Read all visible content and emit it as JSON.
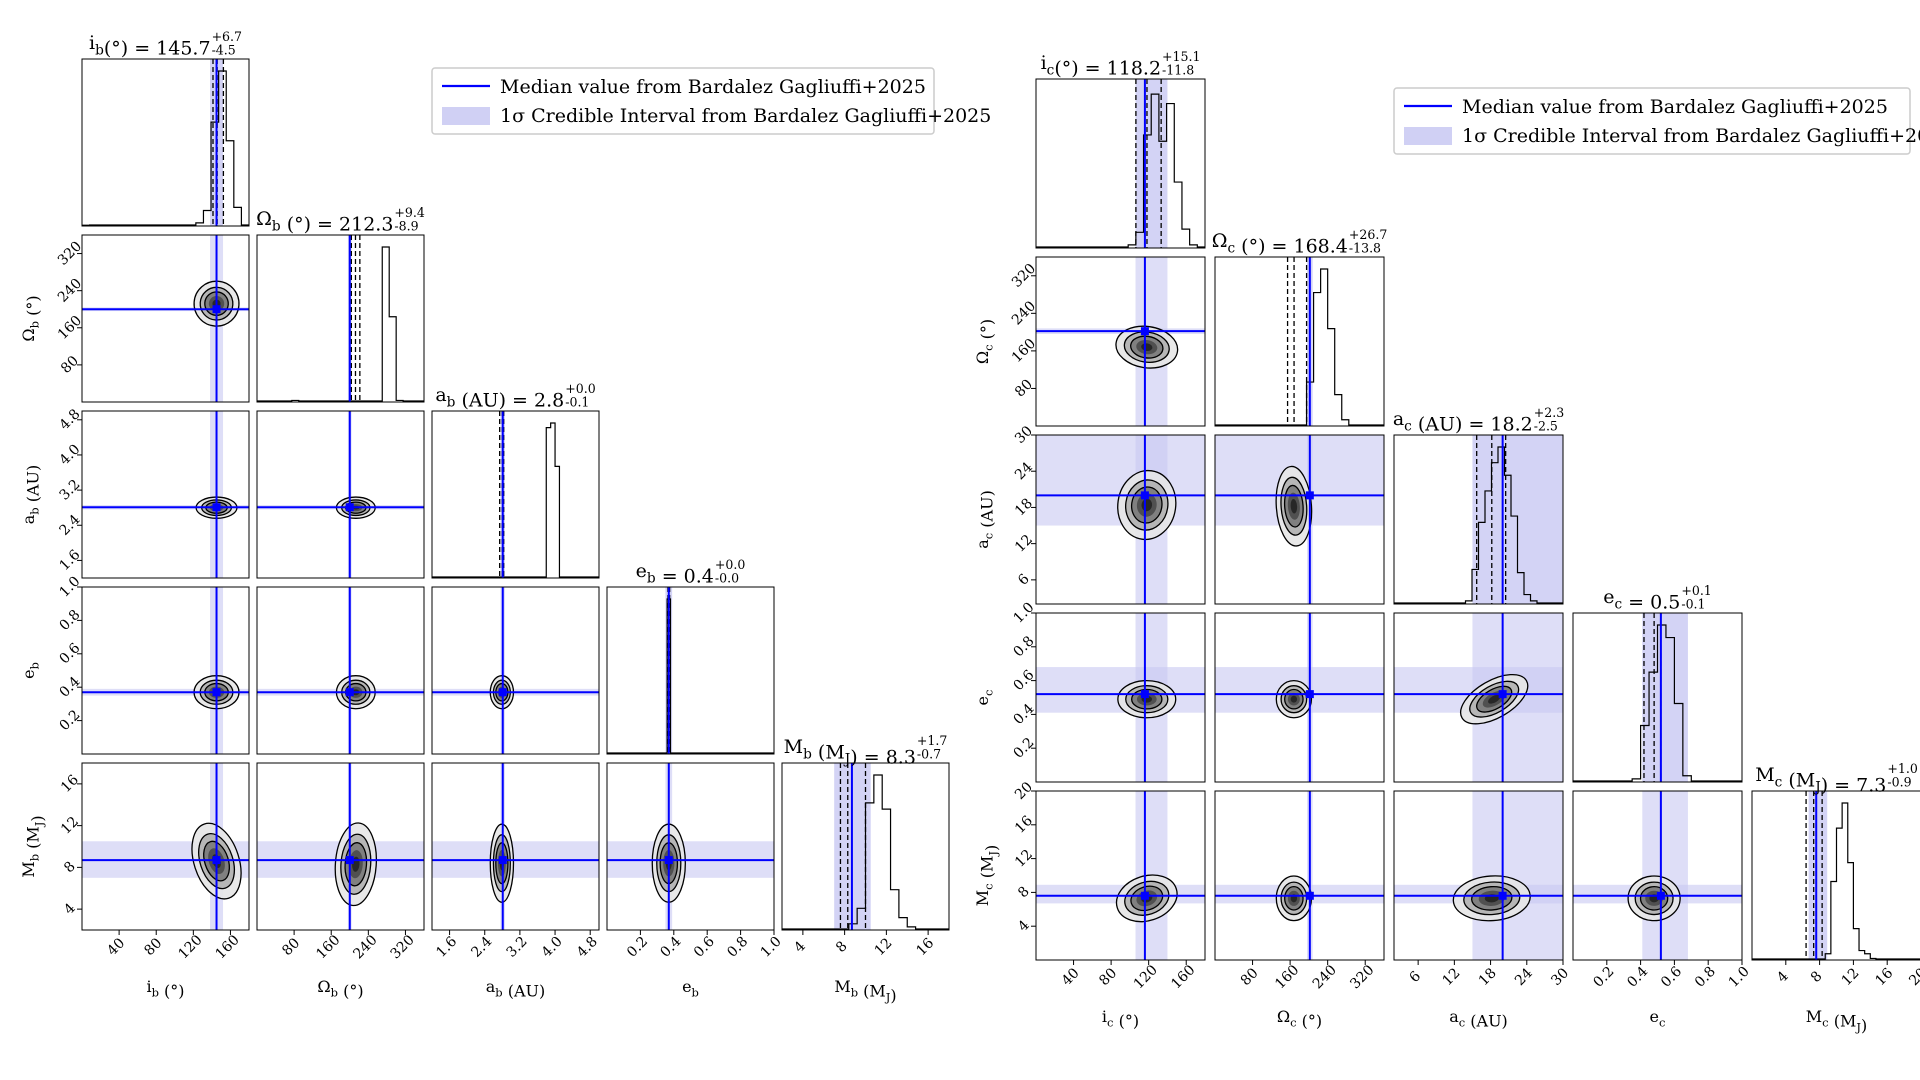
{
  "colors": {
    "median": "#0000ff",
    "band": "#c8c8f2",
    "hist": "#000000",
    "frame": "#000000",
    "legend_border": "#cccccc"
  },
  "legend": {
    "median_label": "Median value from Bardalez Gagliuffi+2025",
    "interval_label": "1σ Credible Interval from Bardalez Gagliuffi+2025"
  },
  "chart_data": [
    {
      "type": "corner",
      "name": "planet-b",
      "params": [
        {
          "key": "i",
          "axis_label": "i_b (°)",
          "title": "i_b(°) = 145.7^{+6.7}_{-4.5}",
          "range": [
            0,
            180
          ],
          "ticks": [
            40,
            80,
            120,
            160
          ],
          "tick_labels": [
            "40",
            "80",
            "120",
            "160"
          ],
          "hist": [
            0.005,
            0,
            0,
            0,
            0,
            0,
            0,
            0,
            0,
            0,
            0,
            0,
            0,
            0,
            0,
            0.02,
            0.1,
            0.67,
            1.0,
            0.55,
            0.12,
            0
          ],
          "quantiles": [
            141.2,
            145.7,
            152.4
          ],
          "ref_median": 145,
          "ref_interval": [
            138,
            152
          ]
        },
        {
          "key": "Omega",
          "axis_label": "Ω_b (°)",
          "title": "Ω_b (°) = 212.3^{+9.4}_{-8.9}",
          "range": [
            0,
            360
          ],
          "ticks": [
            80,
            160,
            240,
            320
          ],
          "tick_labels": [
            "80",
            "160",
            "240",
            "320"
          ],
          "hist": [
            0,
            0,
            0,
            0,
            0,
            0.01,
            0,
            0,
            0,
            0,
            0,
            0,
            0,
            0,
            0,
            0,
            0,
            0,
            1.0,
            0.55,
            0.01,
            0,
            0,
            0
          ],
          "quantiles": [
            203.4,
            212.3,
            221.7
          ],
          "ref_median": 200,
          "ref_interval": [
            196,
            204
          ]
        },
        {
          "key": "a",
          "axis_label": "a_b (AU)",
          "title": "a_b (AU) = 2.8^{+0.0}_{-0.1}",
          "range": [
            1.2,
            5.0
          ],
          "ticks": [
            1.6,
            2.4,
            3.2,
            4.0,
            4.8
          ],
          "tick_labels": [
            "1.6",
            "2.4",
            "3.2",
            "4.0",
            "4.8"
          ],
          "hist": [
            0,
            0,
            0,
            0,
            0,
            0,
            0,
            0,
            0,
            0,
            0,
            0,
            0,
            0,
            0,
            0,
            0,
            0,
            0,
            0,
            0,
            0,
            0,
            0,
            0,
            0,
            0.97,
            1.0,
            0.72,
            0,
            0,
            0,
            0,
            0,
            0,
            0,
            0,
            0
          ],
          "quantiles": [
            2.74,
            2.8,
            2.83
          ],
          "ref_median": 2.81,
          "ref_interval": [
            2.76,
            2.86
          ]
        },
        {
          "key": "e",
          "axis_label": "e_b",
          "title": "e_b = 0.4^{+0.0}_{-0.0}",
          "range": [
            0,
            1
          ],
          "ticks": [
            0.2,
            0.4,
            0.6,
            0.8,
            1.0
          ],
          "tick_labels": [
            "0.2",
            "0.4",
            "0.6",
            "0.8",
            "1.0"
          ],
          "hist": [
            0,
            0,
            0,
            0,
            0,
            0,
            0,
            0,
            0,
            0,
            0,
            0,
            0,
            0,
            0,
            0,
            0,
            0,
            0,
            0,
            0,
            0,
            0,
            0,
            0,
            0,
            0,
            0,
            0,
            0,
            0,
            0,
            0,
            0,
            0,
            0,
            0,
            0,
            0,
            0,
            0,
            0,
            0,
            0,
            0,
            0,
            0,
            0,
            0,
            0,
            0,
            0,
            0,
            0,
            0,
            0,
            0,
            0,
            0,
            0,
            0,
            0,
            0,
            0,
            0,
            0,
            0,
            0,
            0,
            0,
            0,
            0,
            0,
            0,
            0,
            0,
            0,
            0,
            0,
            0,
            0,
            0,
            0,
            0,
            0,
            0,
            0,
            0,
            0,
            0,
            0,
            0,
            0,
            0,
            0,
            0,
            0,
            0,
            0,
            0
          ],
          "hist_bins_note": "",
          "quantiles": [
            0.365,
            0.37,
            0.375
          ],
          "ref_median": 0.37,
          "ref_interval": [
            0.35,
            0.39
          ],
          "spike": [
            0.36,
            0.38
          ]
        },
        {
          "key": "M",
          "axis_label": "M_b (M_J)",
          "title": "M_b (M_J) = 8.3^{+1.7}_{-0.7}",
          "range": [
            2,
            18
          ],
          "ticks": [
            4,
            8,
            12,
            16
          ],
          "tick_labels": [
            "4",
            "8",
            "12",
            "16"
          ],
          "hist": [
            0,
            0,
            0,
            0,
            0,
            0,
            0,
            0,
            0.04,
            0.14,
            0.82,
            1.0,
            0.78,
            0.26,
            0.08,
            0.02,
            0,
            0,
            0,
            0
          ],
          "quantiles": [
            7.6,
            8.3,
            10.0
          ],
          "ref_median": 8.7,
          "ref_interval": [
            7.0,
            10.5
          ]
        }
      ],
      "contours": [
        {
          "row": 1,
          "col": 0,
          "center": [
            145,
            212
          ],
          "sx": 11,
          "sy": 22,
          "corr": -0.1
        },
        {
          "row": 2,
          "col": 0,
          "center": [
            145,
            2.8
          ],
          "sx": 10,
          "sy": 0.11,
          "corr": 0
        },
        {
          "row": 2,
          "col": 1,
          "center": [
            213,
            2.8
          ],
          "sx": 19,
          "sy": 0.11,
          "corr": 0
        },
        {
          "row": 3,
          "col": 0,
          "center": [
            145,
            0.37
          ],
          "sx": 11,
          "sy": 0.045,
          "corr": 0
        },
        {
          "row": 3,
          "col": 1,
          "center": [
            213,
            0.37
          ],
          "sx": 19,
          "sy": 0.045,
          "corr": 0
        },
        {
          "row": 3,
          "col": 2,
          "center": [
            2.79,
            0.37
          ],
          "sx": 0.12,
          "sy": 0.045,
          "corr": 0
        },
        {
          "row": 4,
          "col": 0,
          "center": [
            145,
            8.6
          ],
          "sx": 11,
          "sy": 1.7,
          "corr": 0.45
        },
        {
          "row": 4,
          "col": 1,
          "center": [
            213,
            8.3
          ],
          "sx": 20,
          "sy": 1.8,
          "corr": -0.1
        },
        {
          "row": 4,
          "col": 2,
          "center": [
            2.79,
            8.4
          ],
          "sx": 0.12,
          "sy": 1.7,
          "corr": 0
        },
        {
          "row": 4,
          "col": 3,
          "center": [
            0.37,
            8.4
          ],
          "sx": 0.045,
          "sy": 1.7,
          "corr": 0
        }
      ]
    },
    {
      "type": "corner",
      "name": "planet-c",
      "params": [
        {
          "key": "i",
          "axis_label": "i_c (°)",
          "title": "i_c(°) = 118.2^{+15.1}_{-11.8}",
          "range": [
            0,
            180
          ],
          "ticks": [
            40,
            80,
            120,
            160
          ],
          "tick_labels": [
            "40",
            "80",
            "120",
            "160"
          ],
          "hist": [
            0,
            0,
            0,
            0,
            0,
            0,
            0,
            0,
            0,
            0,
            0,
            0,
            0.02,
            0.1,
            0.72,
            0.98,
            0.68,
            0.92,
            0.42,
            0.12,
            0.02,
            0
          ],
          "quantiles": [
            106.4,
            118.2,
            133.3
          ],
          "ref_median": 116,
          "ref_interval": [
            106,
            140
          ]
        },
        {
          "key": "Omega",
          "axis_label": "Ω_c (°)",
          "title": "Ω_c (°) = 168.4^{+26.7}_{-13.8}",
          "range": [
            0,
            360
          ],
          "ticks": [
            80,
            160,
            240,
            320
          ],
          "tick_labels": [
            "80",
            "160",
            "240",
            "320"
          ],
          "hist": [
            0,
            0,
            0,
            0,
            0,
            0,
            0,
            0,
            0,
            0,
            0,
            0,
            0,
            0.28,
            0.85,
            1.0,
            0.62,
            0.2,
            0.04,
            0,
            0,
            0,
            0,
            0
          ],
          "quantiles": [
            154.6,
            168.4,
            195.1
          ],
          "ref_median": 202,
          "ref_interval": [
            196,
            208
          ]
        },
        {
          "key": "a",
          "axis_label": "a_c (AU)",
          "title": "a_c (AU) = 18.2^{+2.3}_{-2.5}",
          "range": [
            2,
            30
          ],
          "ticks": [
            6,
            12,
            18,
            24,
            30
          ],
          "tick_labels": [
            "6",
            "12",
            "18",
            "24",
            "30"
          ],
          "hist": [
            0,
            0,
            0,
            0,
            0,
            0,
            0,
            0,
            0,
            0,
            0,
            0.02,
            0.22,
            0.52,
            0.72,
            0.9,
            1.0,
            0.82,
            0.56,
            0.2,
            0.06,
            0.02,
            0,
            0,
            0,
            0
          ],
          "quantiles": [
            15.7,
            18.2,
            20.5
          ],
          "ref_median": 20,
          "ref_interval": [
            15,
            30
          ]
        },
        {
          "key": "e",
          "axis_label": "e_c",
          "title": "e_c = 0.5^{+0.1}_{-0.1}",
          "range": [
            0,
            1
          ],
          "ticks": [
            0.2,
            0.4,
            0.6,
            0.8,
            1.0
          ],
          "tick_labels": [
            "0.2",
            "0.4",
            "0.6",
            "0.8",
            "1.0"
          ],
          "hist": [
            0,
            0,
            0,
            0,
            0,
            0,
            0,
            0.02,
            0.36,
            0.7,
            1.0,
            0.92,
            0.5,
            0.04,
            0,
            0,
            0,
            0,
            0,
            0
          ],
          "quantiles": [
            0.42,
            0.48,
            0.52
          ],
          "ref_median": 0.52,
          "ref_interval": [
            0.41,
            0.68
          ]
        },
        {
          "key": "M",
          "axis_label": "M_c (M_J)",
          "title": "M_c (M_J) = 7.3^{+1.0}_{-0.9}",
          "range": [
            0,
            20
          ],
          "ticks": [
            4,
            8,
            12,
            16,
            20
          ],
          "tick_labels": [
            "4",
            "8",
            "12",
            "16",
            "20"
          ],
          "hist": [
            0,
            0,
            0,
            0,
            0,
            0,
            0,
            0,
            0,
            0,
            0,
            0,
            0,
            0.04,
            0.5,
            0.84,
            1.0,
            0.62,
            0.2,
            0.06,
            0.04,
            0.01,
            0,
            0,
            0,
            0,
            0,
            0,
            0,
            0
          ],
          "quantiles": [
            6.4,
            7.3,
            8.3
          ],
          "ref_median": 7.6,
          "ref_interval": [
            6.7,
            8.9
          ]
        }
      ],
      "contours": [
        {
          "row": 1,
          "col": 0,
          "center": [
            118,
            168
          ],
          "sx": 15,
          "sy": 20,
          "corr": -0.2
        },
        {
          "row": 2,
          "col": 0,
          "center": [
            118,
            18.4
          ],
          "sx": 14,
          "sy": 2.6,
          "corr": -0.2
        },
        {
          "row": 2,
          "col": 1,
          "center": [
            168,
            18.2
          ],
          "sx": 17,
          "sy": 3.0,
          "corr": 0.1
        },
        {
          "row": 3,
          "col": 0,
          "center": [
            118,
            0.49
          ],
          "sx": 14,
          "sy": 0.05,
          "corr": 0
        },
        {
          "row": 3,
          "col": 1,
          "center": [
            168,
            0.49
          ],
          "sx": 17,
          "sy": 0.05,
          "corr": 0
        },
        {
          "row": 3,
          "col": 2,
          "center": [
            18.6,
            0.49
          ],
          "sx": 2.8,
          "sy": 0.05,
          "corr": 0.75
        },
        {
          "row": 4,
          "col": 0,
          "center": [
            118,
            7.3
          ],
          "sx": 15,
          "sy": 1.2,
          "corr": 0.45
        },
        {
          "row": 4,
          "col": 1,
          "center": [
            168,
            7.3
          ],
          "sx": 17,
          "sy": 1.2,
          "corr": 0
        },
        {
          "row": 4,
          "col": 2,
          "center": [
            18.2,
            7.3
          ],
          "sx": 2.9,
          "sy": 1.2,
          "corr": 0.1
        },
        {
          "row": 4,
          "col": 3,
          "center": [
            0.48,
            7.3
          ],
          "sx": 0.07,
          "sy": 1.2,
          "corr": 0
        }
      ]
    }
  ]
}
